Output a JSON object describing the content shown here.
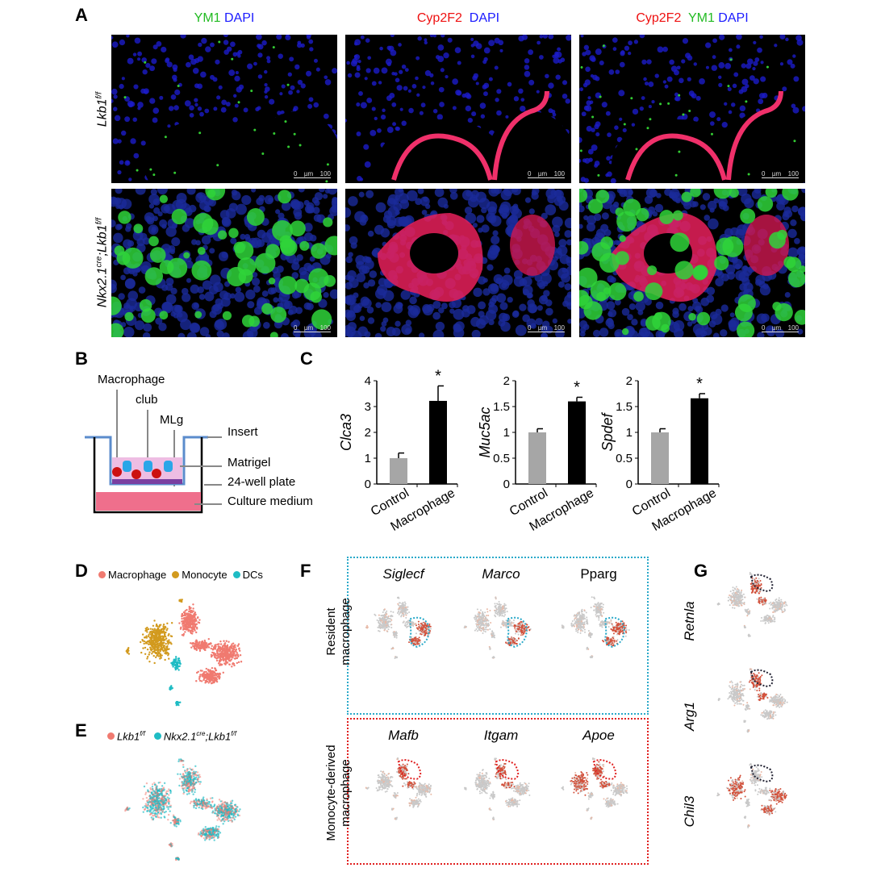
{
  "panels": {
    "A": {
      "label": "A",
      "column_titles": [
        [
          {
            "text": "YM1",
            "color": "#22bb22"
          },
          {
            "text": " DAPI",
            "color": "#1a1aff"
          }
        ],
        [
          {
            "text": "Cyp2F2",
            "color": "#ee1111"
          },
          {
            "text": "  DAPI",
            "color": "#1a1aff"
          }
        ],
        [
          {
            "text": "Cyp2F2",
            "color": "#ee1111"
          },
          {
            "text": "  YM1",
            "color": "#22bb22"
          },
          {
            "text": " DAPI",
            "color": "#1a1aff"
          }
        ]
      ],
      "row_labels": [
        {
          "base": "Lkb1",
          "sup": "f/f"
        },
        {
          "base": "Nkx2.1",
          "sup": "cre",
          "mid": ";Lkb1",
          "sup2": "f/f"
        }
      ],
      "scale_bar": {
        "start": "0",
        "unit": "µm",
        "end": "100"
      }
    },
    "B": {
      "label": "B",
      "labels": {
        "macrophage": "Macrophage",
        "club": "club",
        "mlg": "MLg",
        "insert": "Insert",
        "matrigel": "Matrigel",
        "plate": "24-well plate",
        "medium": "Culture medium"
      }
    },
    "C": {
      "label": "C"
    },
    "D": {
      "label": "D",
      "legend": [
        {
          "name": "Macrophage",
          "color": "#f07a70"
        },
        {
          "name": "Monocyte",
          "color": "#d29a1e"
        },
        {
          "name": "DCs",
          "color": "#1fbcc4"
        }
      ]
    },
    "E": {
      "label": "E",
      "legend": [
        {
          "base": "Lkb1",
          "sup": "f/f",
          "color": "#f07a70"
        },
        {
          "base": "Nkx2.1",
          "sup": "cre",
          "mid": ";Lkb1",
          "sup2": "f/f",
          "color": "#1fbcc4"
        }
      ]
    },
    "F": {
      "label": "F",
      "rows": [
        {
          "label_lines": [
            "Resident",
            "macrophage"
          ],
          "genes": [
            "Siglecf",
            "Marco",
            "Pparg"
          ],
          "box_color": "#2aa9c9"
        },
        {
          "label_lines": [
            "Monocyte-derived",
            "macrophage"
          ],
          "genes": [
            "Mafb",
            "Itgam",
            "Apoe"
          ],
          "box_color": "#e02020"
        }
      ]
    },
    "G": {
      "label": "G",
      "genes": [
        "Retnla",
        "Arg1",
        "Chil3"
      ]
    }
  },
  "chart_data": [
    {
      "type": "bar",
      "ylabel": "Clca3",
      "categories": [
        "Control",
        "Macrophage"
      ],
      "values": [
        1.0,
        3.22
      ],
      "errors": [
        0.2,
        0.58
      ],
      "significance": [
        "",
        "*"
      ],
      "ylim": [
        0,
        4
      ],
      "yticks": [
        "0",
        "1",
        "2",
        "3",
        "4"
      ],
      "colors": [
        "#a6a6a6",
        "#000000"
      ],
      "grid": false
    },
    {
      "type": "bar",
      "ylabel": "Muc5ac",
      "categories": [
        "Control",
        "Macrophage"
      ],
      "values": [
        1.0,
        1.6
      ],
      "errors": [
        0.07,
        0.08
      ],
      "significance": [
        "",
        "*"
      ],
      "ylim": [
        0,
        2
      ],
      "yticks": [
        "0",
        "0.5",
        "1",
        "1.5",
        "2"
      ],
      "colors": [
        "#a6a6a6",
        "#000000"
      ],
      "grid": false
    },
    {
      "type": "bar",
      "ylabel": "Spdef",
      "categories": [
        "Control",
        "Macrophage"
      ],
      "values": [
        1.0,
        1.66
      ],
      "errors": [
        0.07,
        0.09
      ],
      "significance": [
        "",
        "*"
      ],
      "ylim": [
        0,
        2
      ],
      "yticks": [
        "0",
        "0.5",
        "1",
        "1.5",
        "2"
      ],
      "colors": [
        "#a6a6a6",
        "#000000"
      ],
      "grid": false
    }
  ]
}
